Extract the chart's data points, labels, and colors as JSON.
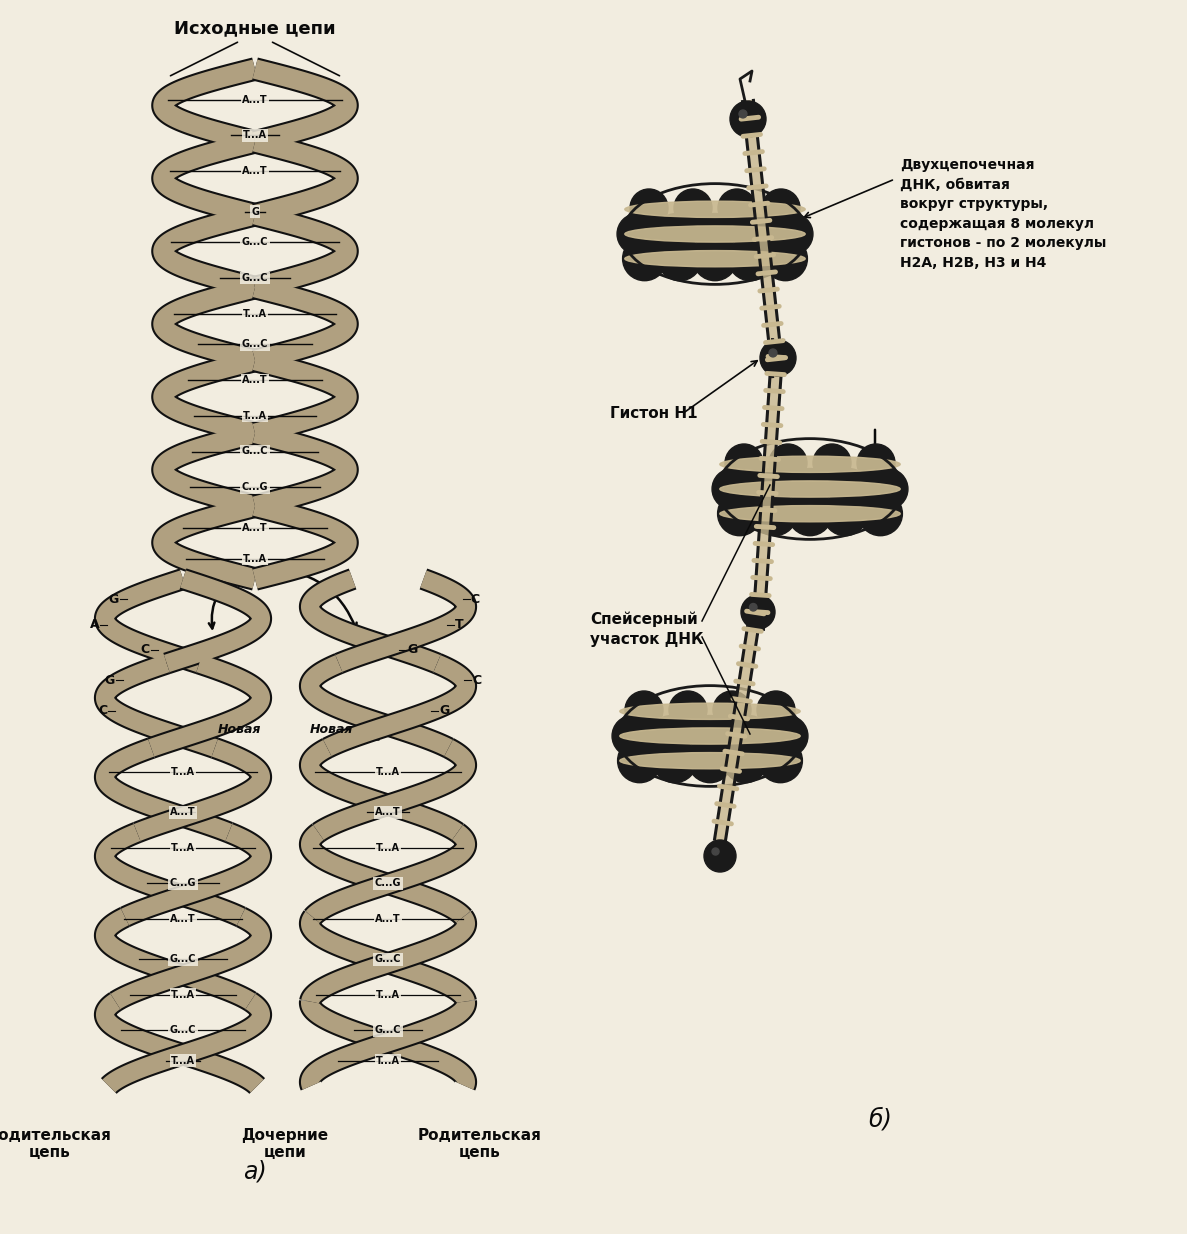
{
  "bg_color": "#f2ede0",
  "strand_color": "#111111",
  "helix_fill": "#b0a080",
  "text_color": "#0a0a0a",
  "nucleosome_dark": "#1a1a1a",
  "nucleosome_band": "#c8b890",
  "label_top": "Исходные цепи",
  "label_parent_left": "Родительская\nцепь",
  "label_daughter": "Дочерние\nцепи",
  "label_parent_right": "Родительская\nцепь",
  "title_a": "а)",
  "title_b": "б)",
  "label_double_helix": "Двухцепочечная\nДНК, обвитая\nвокруг структуры,\nсодержащая 8 молекул\nгистонов - по 2 молекулы\nН2А, Н2В, Н3 и Н4",
  "label_histone": "Гистон Н1",
  "label_spacer": "Спейсерный\nучасток ДНК"
}
